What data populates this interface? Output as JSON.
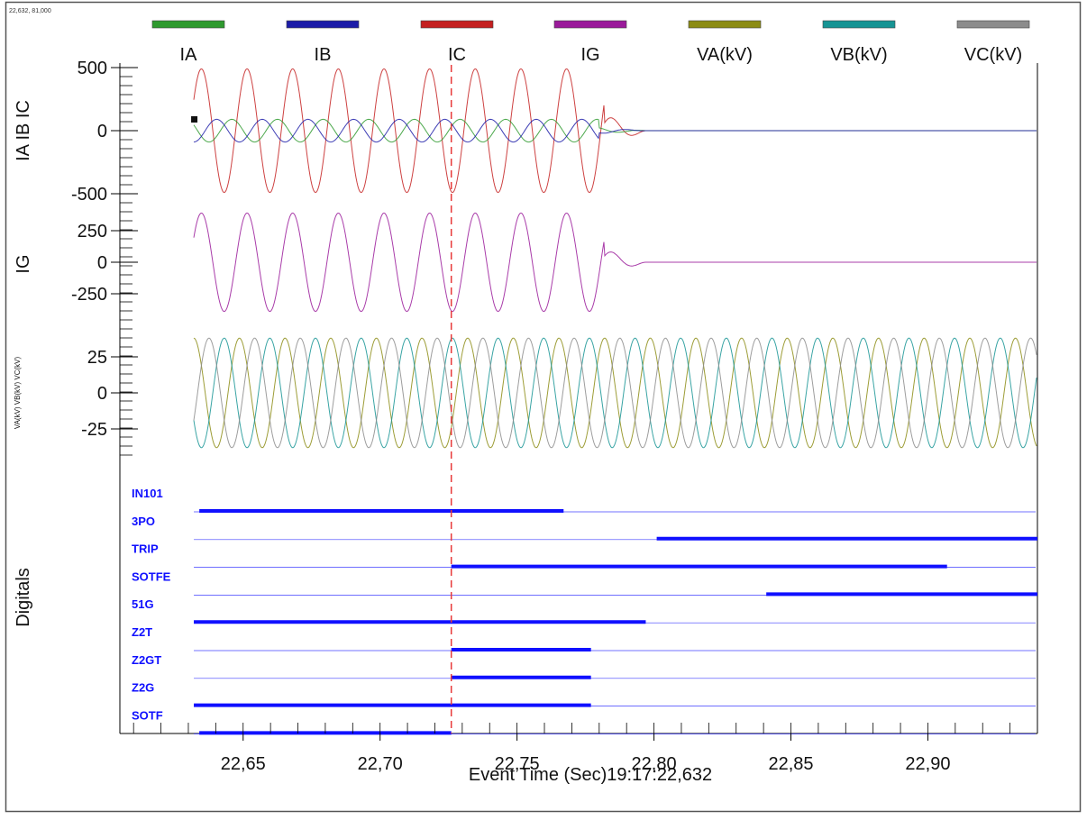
{
  "cursor_readout": "22,632, 81,000",
  "colors": {
    "IA": "#2e9a2e",
    "IB": "#1c1ca8",
    "IC": "#c42020",
    "IG": "#9a1a9a",
    "VA": "#8c8c14",
    "VB": "#169494",
    "VC": "#8c8c8c",
    "digital": "#1010ff",
    "cursor": "#e83a3a",
    "border": "#555555"
  },
  "legend": [
    {
      "name": "IA",
      "color_key": "IA"
    },
    {
      "name": "IB",
      "color_key": "IB"
    },
    {
      "name": "IC",
      "color_key": "IC"
    },
    {
      "name": "IG",
      "color_key": "IG"
    },
    {
      "name": "VA(kV)",
      "color_key": "VA"
    },
    {
      "name": "VB(kV)",
      "color_key": "VB"
    },
    {
      "name": "VC(kV)",
      "color_key": "VC"
    }
  ],
  "chart_data": {
    "type": "line",
    "xlabel": "Event Time (Sec)19:17:22,632",
    "xlim": [
      22.605,
      22.94
    ],
    "xticks": [
      22.65,
      22.7,
      22.75,
      22.8,
      22.85,
      22.9
    ],
    "xtick_labels": [
      "22,65",
      "22,70",
      "22,75",
      "22,80",
      "22,85",
      "22,90"
    ],
    "cursor_x": 22.726,
    "signal_start": 22.632,
    "signal_end": 22.94,
    "frequency_hz": 60,
    "panels": [
      {
        "ylabel": "IA IB IC",
        "ylim": [
          -600,
          600
        ],
        "yticks": [
          500,
          0,
          -500
        ],
        "ytick_labels": [
          "500",
          "0",
          "-500"
        ],
        "series": [
          {
            "name": "IC",
            "amplitude": 490,
            "phase_deg": 30,
            "decay_start": 22.782,
            "decay_end": 22.797,
            "color_key": "IC"
          },
          {
            "name": "IA",
            "amplitude": 90,
            "phase_deg": 150,
            "decay_start": 22.78,
            "decay_end": 22.797,
            "color_key": "IA"
          },
          {
            "name": "IB",
            "amplitude": 90,
            "phase_deg": 270,
            "decay_start": 22.78,
            "decay_end": 22.797,
            "color_key": "IB"
          }
        ]
      },
      {
        "ylabel": "IG",
        "ylim": [
          -450,
          450
        ],
        "yticks": [
          250,
          0,
          -250
        ],
        "ytick_labels": [
          "250",
          "0",
          "-250"
        ],
        "series": [
          {
            "name": "IG",
            "amplitude": 390,
            "phase_deg": 30,
            "decay_start": 22.782,
            "decay_end": 22.797,
            "color_key": "IG"
          }
        ]
      },
      {
        "ylabel": "VA(kV) VB(kV) VC(kV)",
        "ylim": [
          -45,
          45
        ],
        "yticks": [
          25,
          0,
          -25
        ],
        "ytick_labels": [
          "25",
          "0",
          "-25"
        ],
        "series": [
          {
            "name": "VA(kV)",
            "amplitude": 38,
            "phase_deg": 90,
            "color_key": "VA"
          },
          {
            "name": "VB(kV)",
            "amplitude": 38,
            "phase_deg": 210,
            "color_key": "VB"
          },
          {
            "name": "VC(kV)",
            "amplitude": 38,
            "phase_deg": 330,
            "color_key": "VC"
          }
        ]
      }
    ],
    "digitals": {
      "ylabel": "Digitals",
      "channels": [
        {
          "name": "IN101",
          "high": [
            [
              22.634,
              22.767
            ]
          ]
        },
        {
          "name": "3PO",
          "high": [
            [
              22.801,
              22.94
            ]
          ]
        },
        {
          "name": "TRIP",
          "high": [
            [
              22.726,
              22.907
            ]
          ]
        },
        {
          "name": "SOTFE",
          "high": [
            [
              22.841,
              22.94
            ]
          ]
        },
        {
          "name": "51G",
          "high": [
            [
              22.632,
              22.797
            ]
          ]
        },
        {
          "name": "Z2T",
          "high": [
            [
              22.726,
              22.777
            ]
          ]
        },
        {
          "name": "Z2GT",
          "high": [
            [
              22.726,
              22.777
            ]
          ]
        },
        {
          "name": "Z2G",
          "high": [
            [
              22.632,
              22.777
            ]
          ]
        },
        {
          "name": "SOTF",
          "high": [
            [
              22.634,
              22.726
            ]
          ]
        }
      ]
    }
  }
}
